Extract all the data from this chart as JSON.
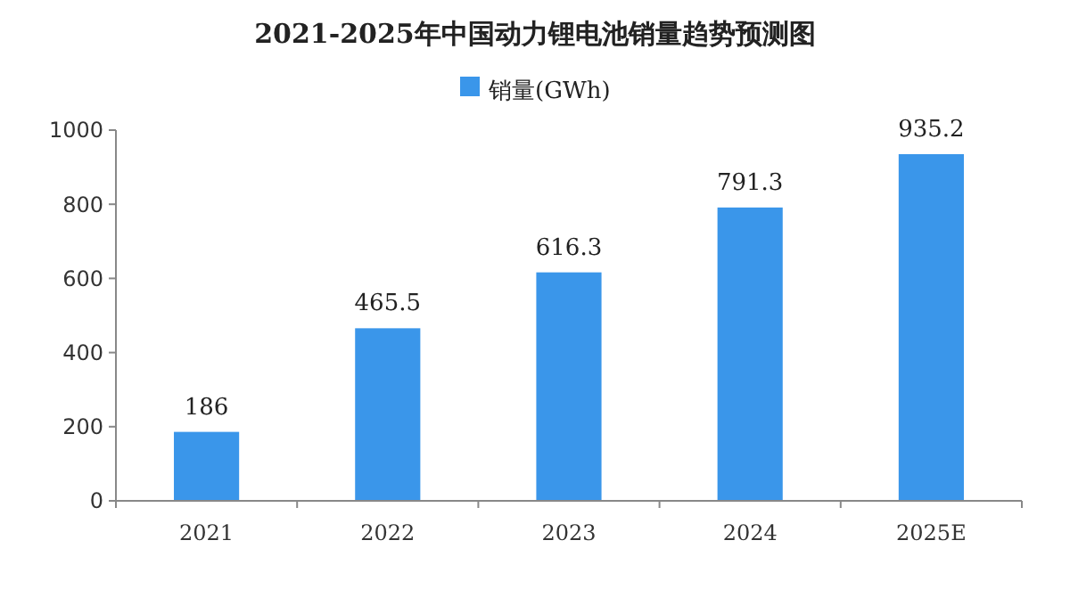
{
  "chart_data": {
    "type": "bar",
    "title": "2021-2025年中国动力锂电池销量趋势预测图",
    "categories": [
      "2021",
      "2022",
      "2023",
      "2024",
      "2025E"
    ],
    "series": [
      {
        "name": "销量(GWh)",
        "color": "#3a96ea",
        "values": [
          186,
          465.5,
          616.3,
          791.3,
          935.2
        ]
      }
    ],
    "ylim": [
      0,
      1000
    ],
    "yticks": [
      0,
      200,
      400,
      600,
      800,
      1000
    ],
    "grid": false,
    "legend": "top",
    "data_labels": true
  }
}
